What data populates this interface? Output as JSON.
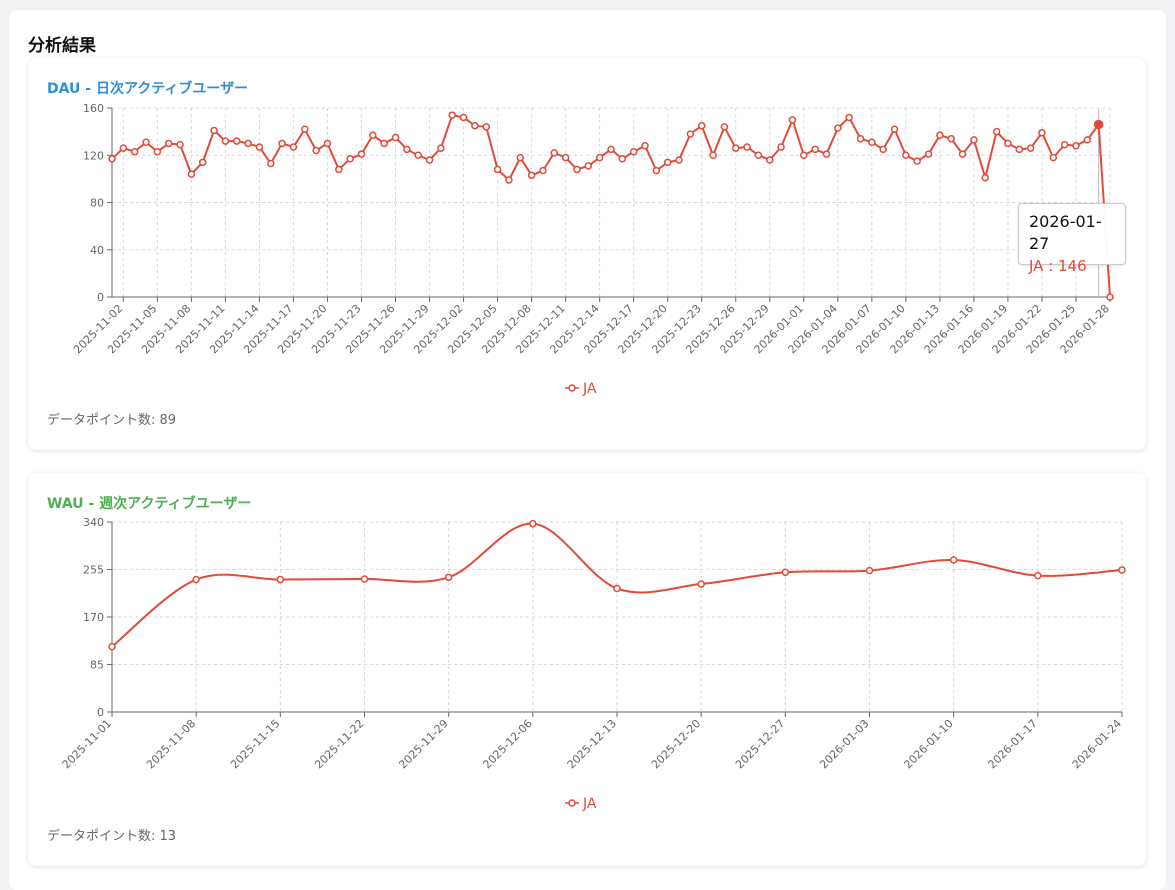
{
  "page": {
    "section_title": "分析結果"
  },
  "charts": [
    {
      "id": "dau",
      "title": "DAU - 日次アクティブユーザー",
      "count_label": "データポイント数: 89",
      "legend": "JA",
      "tooltip": {
        "label": "2026-01-27",
        "value": "JA : 146"
      },
      "colors": {
        "series": "#e04b3a",
        "title": "#2d8fd5"
      }
    },
    {
      "id": "wau",
      "title": "WAU - 週次アクティブユーザー",
      "count_label": "データポイント数: 13",
      "legend": "JA",
      "colors": {
        "series": "#e04b3a",
        "title": "#4caf50"
      }
    }
  ],
  "chart_data": [
    {
      "type": "line",
      "title": "DAU - 日次アクティブユーザー",
      "x_start": "2025-11-01",
      "x_end": "2026-01-28",
      "x_ticks": [
        "2025-11-02",
        "2025-11-05",
        "2025-11-08",
        "2025-11-11",
        "2025-11-14",
        "2025-11-17",
        "2025-11-20",
        "2025-11-23",
        "2025-11-26",
        "2025-11-29",
        "2025-12-02",
        "2025-12-05",
        "2025-12-08",
        "2025-12-11",
        "2025-12-14",
        "2025-12-17",
        "2025-12-20",
        "2025-12-23",
        "2025-12-26",
        "2025-12-29",
        "2026-01-01",
        "2026-01-04",
        "2026-01-07",
        "2026-01-10",
        "2026-01-13",
        "2026-01-16",
        "2026-01-19",
        "2026-01-22",
        "2026-01-25",
        "2026-01-28"
      ],
      "y_ticks": [
        0,
        40,
        80,
        120,
        160
      ],
      "ylim": [
        0,
        160
      ],
      "grid": true,
      "legend_position": "bottom-center",
      "highlight_date": "2026-01-27",
      "series": [
        {
          "name": "JA",
          "values": [
            117,
            126,
            123,
            131,
            123,
            130,
            129,
            104,
            114,
            141,
            132,
            132,
            130,
            127,
            113,
            130,
            127,
            142,
            124,
            130,
            108,
            117,
            121,
            137,
            130,
            135,
            125,
            120,
            116,
            126,
            154,
            152,
            145,
            144,
            108,
            99,
            118,
            103,
            107,
            122,
            118,
            108,
            111,
            118,
            125,
            117,
            123,
            128,
            107,
            114,
            116,
            138,
            145,
            120,
            144,
            126,
            127,
            120,
            116,
            127,
            150,
            120,
            125,
            121,
            143,
            152,
            134,
            131,
            125,
            142,
            120,
            115,
            121,
            137,
            134,
            121,
            133,
            101,
            140,
            130,
            125,
            126,
            139,
            118,
            129,
            128,
            133,
            146,
            0
          ]
        }
      ]
    },
    {
      "type": "line",
      "title": "WAU - 週次アクティブユーザー",
      "categories": [
        "2025-11-01",
        "2025-11-08",
        "2025-11-15",
        "2025-11-22",
        "2025-11-29",
        "2025-12-06",
        "2025-12-13",
        "2025-12-20",
        "2025-12-27",
        "2026-01-03",
        "2026-01-10",
        "2026-01-17",
        "2026-01-24"
      ],
      "y_ticks": [
        0,
        85,
        170,
        255,
        340
      ],
      "ylim": [
        0,
        340
      ],
      "grid": true,
      "smooth": true,
      "legend_position": "bottom-center",
      "series": [
        {
          "name": "JA",
          "values": [
            117,
            237,
            237,
            238,
            241,
            337,
            221,
            229,
            250,
            253,
            272,
            244,
            254
          ]
        }
      ]
    }
  ]
}
